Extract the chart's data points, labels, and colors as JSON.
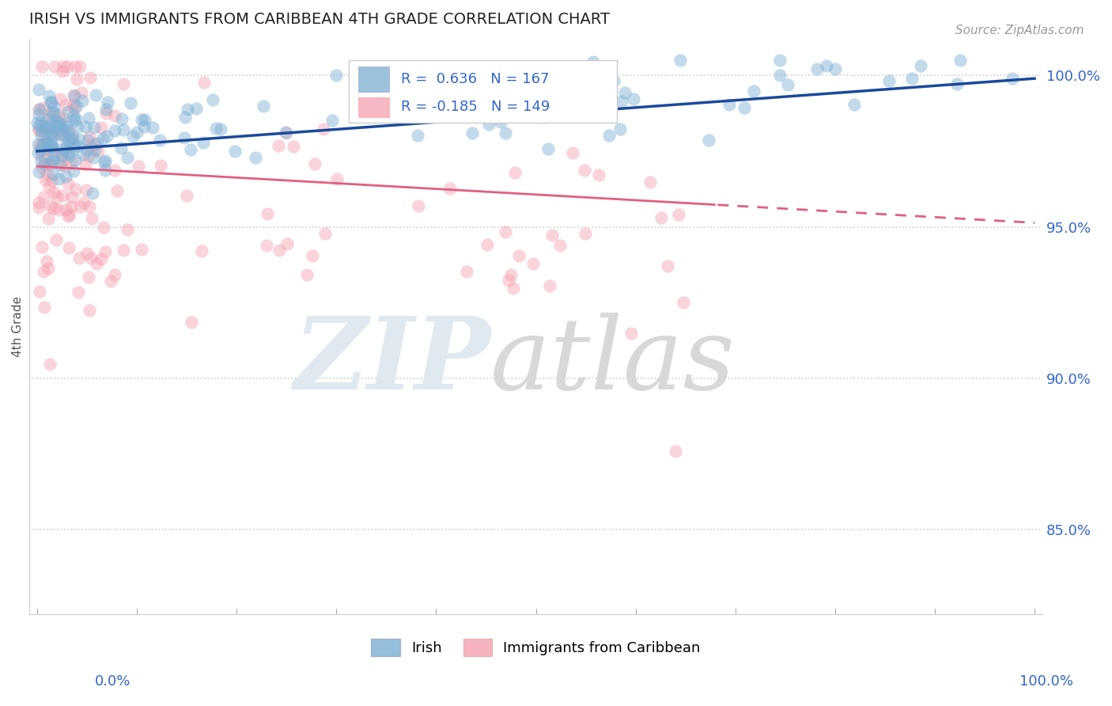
{
  "title": "IRISH VS IMMIGRANTS FROM CARIBBEAN 4TH GRADE CORRELATION CHART",
  "source": "Source: ZipAtlas.com",
  "ylabel": "4th Grade",
  "ytick_labels": [
    "85.0%",
    "90.0%",
    "95.0%",
    "100.0%"
  ],
  "ytick_values": [
    0.85,
    0.9,
    0.95,
    1.0
  ],
  "ylim": [
    0.822,
    1.012
  ],
  "xlim": [
    -0.008,
    1.008
  ],
  "blue_R": 0.636,
  "blue_N": 167,
  "pink_R": -0.185,
  "pink_N": 149,
  "blue_color": "#7BAFD4",
  "pink_color": "#F4A0B0",
  "blue_line_color": "#1A4A9A",
  "pink_line_color": "#E06080",
  "background_color": "#FFFFFF",
  "grid_color": "#CCCCCC",
  "legend_irish": "Irish",
  "legend_carib": "Immigrants from Caribbean",
  "title_color": "#222222",
  "axis_label_color": "#4488CC",
  "annotation_color": "#3366CC"
}
